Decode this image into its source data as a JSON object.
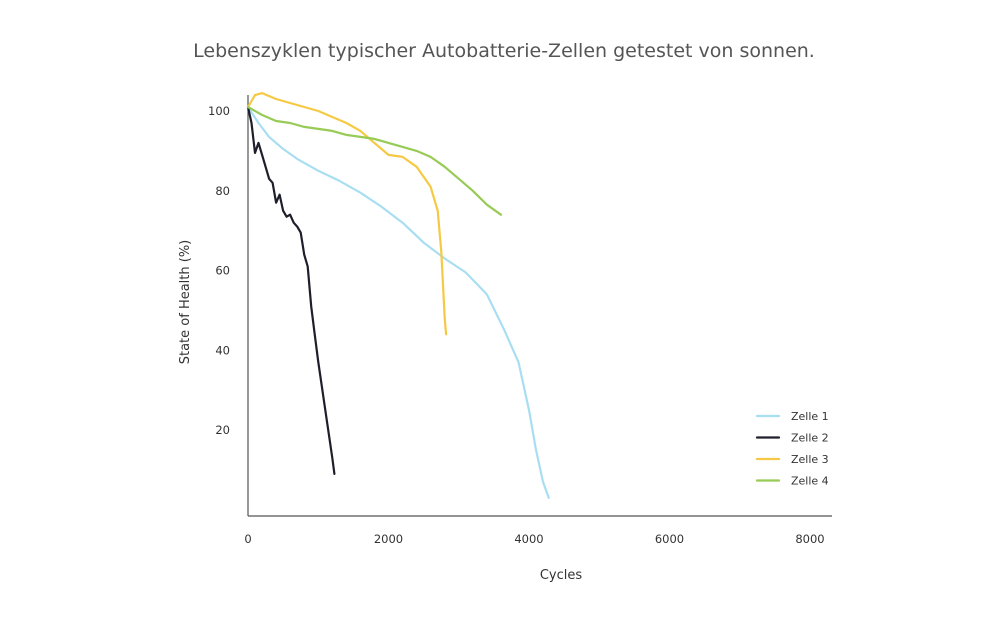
{
  "chart_data": {
    "type": "line",
    "title": "Lebenszyklen typischer Autobatterie-Zellen getestet von sonnen.",
    "xlabel": "Cycles",
    "ylabel": "State of Health (%)",
    "xlim": [
      0,
      8000
    ],
    "ylim": [
      0,
      105
    ],
    "xticks": [
      {
        "value": 0,
        "label": "0"
      },
      {
        "value": 2000,
        "label": "2000"
      },
      {
        "value": 4000,
        "label": "4000"
      },
      {
        "value": 6000,
        "label": "6000"
      },
      {
        "value": 8000,
        "label": "8000"
      }
    ],
    "yticks": [
      {
        "value": 20,
        "label": "20"
      },
      {
        "value": 40,
        "label": "40"
      },
      {
        "value": 60,
        "label": "60"
      },
      {
        "value": 80,
        "label": "80"
      },
      {
        "value": 100,
        "label": "100"
      }
    ],
    "grid": false,
    "legend_position": "bottom-right",
    "series": [
      {
        "name": "Zelle 1",
        "color": "#a9def2",
        "points": [
          [
            0,
            101
          ],
          [
            150,
            97
          ],
          [
            300,
            93.5
          ],
          [
            500,
            90.5
          ],
          [
            700,
            88
          ],
          [
            1000,
            85
          ],
          [
            1300,
            82.5
          ],
          [
            1600,
            79.5
          ],
          [
            1900,
            76
          ],
          [
            2200,
            72
          ],
          [
            2500,
            67
          ],
          [
            2800,
            63
          ],
          [
            3100,
            59.5
          ],
          [
            3400,
            54
          ],
          [
            3650,
            45
          ],
          [
            3850,
            37
          ],
          [
            4000,
            25
          ],
          [
            4100,
            15
          ],
          [
            4200,
            7
          ],
          [
            4280,
            3
          ]
        ]
      },
      {
        "name": "Zelle 2",
        "color": "#1f1f2b",
        "points": [
          [
            0,
            101
          ],
          [
            50,
            97
          ],
          [
            100,
            89.5
          ],
          [
            150,
            92
          ],
          [
            200,
            89
          ],
          [
            250,
            86
          ],
          [
            300,
            83
          ],
          [
            350,
            82
          ],
          [
            400,
            77
          ],
          [
            450,
            79
          ],
          [
            500,
            75
          ],
          [
            550,
            73.5
          ],
          [
            600,
            74
          ],
          [
            650,
            72
          ],
          [
            700,
            71
          ],
          [
            750,
            69.5
          ],
          [
            800,
            64
          ],
          [
            850,
            61
          ],
          [
            900,
            51
          ],
          [
            950,
            44
          ],
          [
            1000,
            37
          ],
          [
            1050,
            31
          ],
          [
            1100,
            25
          ],
          [
            1150,
            19
          ],
          [
            1200,
            13
          ],
          [
            1230,
            9
          ]
        ]
      },
      {
        "name": "Zelle 3",
        "color": "#f6c944",
        "points": [
          [
            0,
            101
          ],
          [
            100,
            104
          ],
          [
            200,
            104.5
          ],
          [
            400,
            103
          ],
          [
            600,
            102
          ],
          [
            800,
            101
          ],
          [
            1000,
            100
          ],
          [
            1200,
            98.5
          ],
          [
            1400,
            97
          ],
          [
            1600,
            95
          ],
          [
            1800,
            92
          ],
          [
            2000,
            89
          ],
          [
            2200,
            88.5
          ],
          [
            2400,
            86
          ],
          [
            2600,
            81
          ],
          [
            2700,
            75
          ],
          [
            2750,
            65
          ],
          [
            2780,
            55
          ],
          [
            2800,
            48
          ],
          [
            2820,
            44
          ]
        ]
      },
      {
        "name": "Zelle 4",
        "color": "#97cb55",
        "points": [
          [
            0,
            101
          ],
          [
            200,
            99
          ],
          [
            400,
            97.5
          ],
          [
            600,
            97
          ],
          [
            800,
            96
          ],
          [
            1000,
            95.5
          ],
          [
            1200,
            95
          ],
          [
            1400,
            94
          ],
          [
            1600,
            93.5
          ],
          [
            1800,
            93
          ],
          [
            2000,
            92
          ],
          [
            2200,
            91
          ],
          [
            2400,
            90
          ],
          [
            2600,
            88.5
          ],
          [
            2800,
            86
          ],
          [
            3000,
            83
          ],
          [
            3200,
            80
          ],
          [
            3400,
            76.5
          ],
          [
            3600,
            74
          ]
        ]
      }
    ]
  }
}
